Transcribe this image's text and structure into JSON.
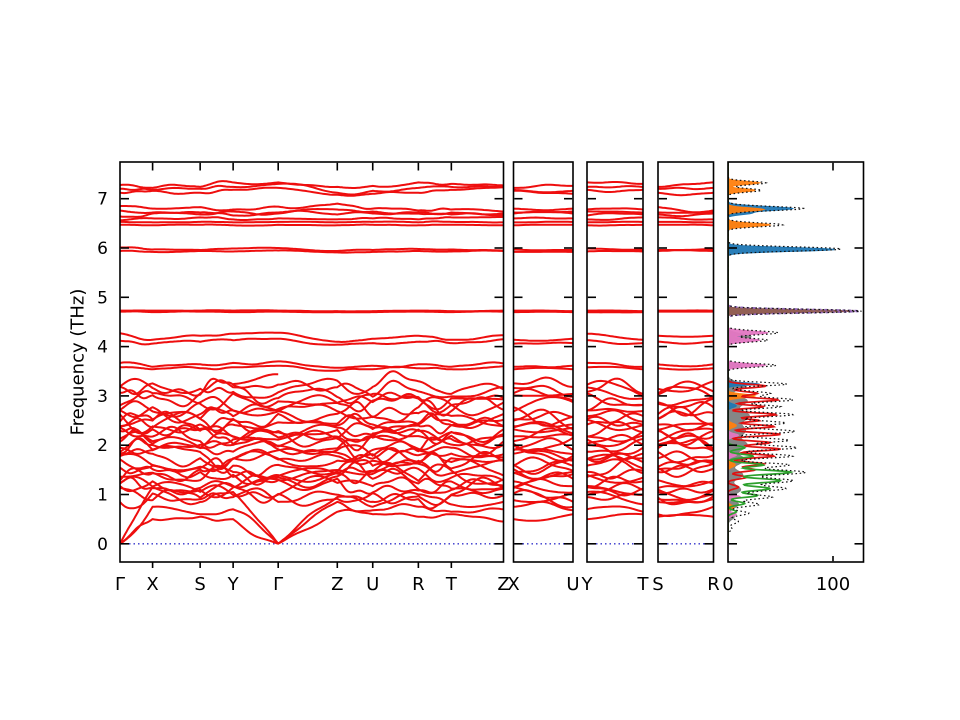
{
  "figure": {
    "background": "#ffffff"
  },
  "chart_data": {
    "type": "line",
    "title": "",
    "ylabel": "Frequency (THz)",
    "yticks": [
      0,
      1,
      2,
      3,
      4,
      5,
      6,
      7
    ],
    "ylim": [
      -0.37,
      7.75
    ],
    "band_color": "#ee0e0e",
    "zero_line_color": "#3434cc",
    "frame_color": "#000000",
    "panels": {
      "main": {
        "labels": [
          "Γ",
          "X",
          "S",
          "Y",
          "Γ",
          "Z",
          "U",
          "R",
          "T",
          "Z"
        ],
        "fractions": [
          0,
          0.085,
          0.209,
          0.295,
          0.4125,
          0.5666,
          0.659,
          0.778,
          0.864,
          1
        ]
      },
      "extra": [
        {
          "id": "XU",
          "labels": [
            "X",
            "U"
          ],
          "node_indices": [
            1,
            6
          ]
        },
        {
          "id": "YT",
          "labels": [
            "Y",
            "T"
          ],
          "node_indices": [
            3,
            8
          ]
        },
        {
          "id": "SR",
          "labels": [
            "S",
            "R"
          ],
          "node_indices": [
            2,
            7
          ]
        }
      ],
      "dos": {
        "xticks": [
          0,
          100
        ],
        "xlim": [
          0,
          129
        ],
        "legend": "none"
      }
    },
    "bands": {
      "explicit": [
        {
          "f": [
            7.28,
            7.22,
            7.24,
            7.33,
            7.33,
            7.24,
            7.26,
            7.33,
            7.3,
            7.27
          ],
          "bump": 0.05
        },
        {
          "f": [
            7.2,
            7.18,
            7.2,
            7.24,
            7.3,
            7.12,
            7.16,
            7.22,
            7.24,
            7.25
          ],
          "bump": 0.05
        },
        {
          "f": [
            7.12,
            7.16,
            7.12,
            7.18,
            7.22,
            7.08,
            7.1,
            7.12,
            7.18,
            7.23
          ],
          "bump": 0.04
        },
        {
          "f": [
            6.85,
            6.8,
            6.83,
            6.78,
            6.84,
            6.9,
            6.8,
            6.76,
            6.78,
            6.74
          ],
          "bump": 0.05
        },
        {
          "f": [
            6.76,
            6.72,
            6.68,
            6.74,
            6.7,
            6.78,
            6.74,
            6.7,
            6.72,
            6.7
          ],
          "bump": 0.04
        },
        {
          "f": [
            6.64,
            6.7,
            6.72,
            6.66,
            6.72,
            6.68,
            6.7,
            6.72,
            6.68,
            6.66
          ],
          "bump": 0.04
        },
        {
          "f": [
            6.56,
            6.6,
            6.62,
            6.58,
            6.6,
            6.58,
            6.6,
            6.58,
            6.62,
            6.63
          ],
          "bump": 0.03
        },
        {
          "f": [
            6.53,
            6.52,
            6.53,
            6.52,
            6.53,
            6.52,
            6.53,
            6.52,
            6.53,
            6.52
          ],
          "bump": 0.012
        },
        {
          "f": [
            6.47,
            6.46,
            6.47,
            6.46,
            6.47,
            6.46,
            6.47,
            6.46,
            6.47,
            6.46
          ],
          "bump": 0.012
        },
        {
          "f": [
            6.01,
            5.97,
            5.96,
            5.99,
            6.0,
            5.94,
            5.96,
            5.98,
            5.97,
            5.95
          ],
          "bump": 0.015
        },
        {
          "f": [
            5.94,
            5.92,
            5.94,
            5.93,
            5.95,
            5.91,
            5.92,
            5.94,
            5.93,
            5.94
          ],
          "bump": 0.012
        },
        {
          "f": [
            4.73,
            4.73,
            4.73,
            4.73,
            4.73,
            4.72,
            4.72,
            4.73,
            4.72,
            4.73
          ],
          "bump": 0.008
        },
        {
          "f": [
            4.71,
            4.7,
            4.71,
            4.7,
            4.71,
            4.7,
            4.7,
            4.71,
            4.7,
            4.71
          ],
          "bump": 0.008
        },
        {
          "f": [
            4.27,
            4.14,
            4.22,
            4.26,
            4.28,
            4.1,
            4.16,
            4.22,
            4.14,
            4.23
          ],
          "bump": 0.04
        },
        {
          "f": [
            4.12,
            4.06,
            4.1,
            4.13,
            4.16,
            4.04,
            4.07,
            4.1,
            4.07,
            4.15
          ],
          "bump": 0.035
        },
        {
          "f": [
            3.67,
            3.59,
            3.64,
            3.67,
            3.7,
            3.57,
            3.61,
            3.64,
            3.59,
            3.66
          ],
          "bump": 0.04
        },
        {
          "f": [
            3.58,
            3.54,
            3.56,
            3.58,
            3.61,
            3.51,
            3.54,
            3.56,
            3.54,
            3.6
          ],
          "bump": 0.03
        }
      ],
      "acoustic": [
        {
          "f": [
            0,
            1.15,
            0.85,
            1.05,
            0,
            0.95,
            0.75,
            1.0,
            0.8,
            0.85
          ],
          "bump": 0.1
        },
        {
          "f": [
            0,
            0.75,
            0.6,
            0.7,
            0,
            0.85,
            0.68,
            0.75,
            0.65,
            0.7
          ],
          "bump": 0.1
        },
        {
          "f": [
            0,
            0.5,
            0.55,
            0.5,
            0,
            0.65,
            0.6,
            0.55,
            0.6,
            0.45
          ],
          "bump": 0.08
        }
      ],
      "dense": {
        "base": [
          0.95,
          1.02,
          1.1,
          1.18,
          1.26,
          1.34,
          1.42,
          1.5,
          1.58,
          1.66,
          1.74,
          1.82,
          1.9,
          1.98,
          2.06,
          2.14,
          2.22,
          2.3,
          2.38,
          2.46,
          2.54,
          2.62,
          2.72,
          2.82,
          2.92,
          3.02,
          3.12,
          3.2
        ],
        "wobble": 0.16,
        "bump": 0.22,
        "seed": 7
      },
      "partial": [
        {
          "from": 3,
          "to": 4,
          "f": [
            3.24,
            3.44
          ]
        }
      ]
    },
    "dos_series": [
      {
        "name": "pdos-gray",
        "color": "#808080",
        "style": "fill",
        "peaks": [
          [
            6.8,
            18,
            0.05
          ],
          [
            6.47,
            14,
            0.05
          ],
          [
            4.2,
            22,
            0.08
          ],
          [
            3.62,
            12,
            0.05
          ],
          [
            3.2,
            16,
            0.1
          ],
          [
            2.9,
            18,
            0.12
          ],
          [
            2.6,
            20,
            0.15
          ],
          [
            2.3,
            16,
            0.15
          ],
          [
            2.0,
            18,
            0.15
          ],
          [
            1.7,
            16,
            0.12
          ],
          [
            1.4,
            14,
            0.12
          ],
          [
            1.1,
            12,
            0.12
          ],
          [
            0.8,
            10,
            0.1
          ],
          [
            0.55,
            6,
            0.08
          ]
        ]
      },
      {
        "name": "pdos-blue",
        "color": "#1f77b4",
        "style": "fill",
        "peaks": [
          [
            6.8,
            62,
            0.06
          ],
          [
            6.7,
            18,
            0.04
          ],
          [
            5.97,
            102,
            0.055
          ],
          [
            3.24,
            30,
            0.035
          ],
          [
            2.8,
            8,
            0.05
          ]
        ]
      },
      {
        "name": "pdos-orange",
        "color": "#ff7f0e",
        "style": "fill",
        "peaks": [
          [
            7.32,
            30,
            0.045
          ],
          [
            7.17,
            26,
            0.045
          ],
          [
            6.78,
            34,
            0.05
          ],
          [
            6.47,
            40,
            0.05
          ],
          [
            3.0,
            26,
            0.05
          ],
          [
            2.4,
            8,
            0.06
          ],
          [
            1.6,
            7,
            0.06
          ],
          [
            0.75,
            6,
            0.05
          ]
        ]
      },
      {
        "name": "pdos-brown",
        "color": "#8c564b",
        "style": "fill",
        "peaks": [
          [
            4.72,
            122,
            0.04
          ]
        ]
      },
      {
        "name": "pdos-purple",
        "color": "#9467bd",
        "style": "dashed",
        "peaks": [
          [
            4.72,
            126,
            0.05
          ],
          [
            4.2,
            12,
            0.05
          ]
        ]
      },
      {
        "name": "pdos-pink",
        "color": "#e377c2",
        "style": "fill",
        "peaks": [
          [
            4.28,
            38,
            0.05
          ],
          [
            4.13,
            30,
            0.05
          ],
          [
            3.62,
            36,
            0.045
          ],
          [
            2.2,
            10,
            0.05
          ],
          [
            1.8,
            8,
            0.05
          ],
          [
            0.95,
            12,
            0.05
          ],
          [
            0.6,
            8,
            0.05
          ]
        ]
      },
      {
        "name": "pdos-red",
        "color": "#e01010",
        "style": "line",
        "peaks": [
          [
            3.2,
            36,
            0.05
          ],
          [
            3.05,
            28,
            0.05
          ],
          [
            2.92,
            48,
            0.05
          ],
          [
            2.78,
            34,
            0.045
          ],
          [
            2.62,
            46,
            0.05
          ],
          [
            2.5,
            30,
            0.04
          ],
          [
            2.38,
            44,
            0.05
          ],
          [
            2.22,
            50,
            0.05
          ],
          [
            2.05,
            40,
            0.05
          ],
          [
            1.92,
            50,
            0.05
          ],
          [
            1.78,
            44,
            0.05
          ],
          [
            1.62,
            34,
            0.05
          ],
          [
            1.5,
            26,
            0.05
          ],
          [
            1.35,
            18,
            0.05
          ],
          [
            1.15,
            10,
            0.05
          ]
        ]
      },
      {
        "name": "pdos-green",
        "color": "#2ca02c",
        "style": "line",
        "peaks": [
          [
            1.95,
            16,
            0.05
          ],
          [
            1.78,
            24,
            0.05
          ],
          [
            1.6,
            34,
            0.05
          ],
          [
            1.45,
            60,
            0.06
          ],
          [
            1.28,
            50,
            0.06
          ],
          [
            1.12,
            40,
            0.06
          ],
          [
            0.98,
            28,
            0.05
          ],
          [
            0.82,
            16,
            0.05
          ],
          [
            0.65,
            8,
            0.05
          ]
        ]
      },
      {
        "name": "total-dos",
        "color": "#111111",
        "style": "dotted",
        "peaks": [
          [
            7.32,
            36,
            0.05
          ],
          [
            7.17,
            32,
            0.05
          ],
          [
            6.8,
            72,
            0.06
          ],
          [
            6.47,
            52,
            0.055
          ],
          [
            5.98,
            108,
            0.06
          ],
          [
            4.72,
            128,
            0.05
          ],
          [
            4.28,
            48,
            0.055
          ],
          [
            4.13,
            38,
            0.05
          ],
          [
            3.62,
            46,
            0.05
          ],
          [
            3.24,
            56,
            0.05
          ],
          [
            3.05,
            40,
            0.06
          ],
          [
            2.92,
            62,
            0.06
          ],
          [
            2.78,
            50,
            0.05
          ],
          [
            2.62,
            62,
            0.06
          ],
          [
            2.45,
            55,
            0.06
          ],
          [
            2.28,
            64,
            0.06
          ],
          [
            2.1,
            58,
            0.06
          ],
          [
            1.95,
            66,
            0.06
          ],
          [
            1.78,
            62,
            0.06
          ],
          [
            1.6,
            58,
            0.06
          ],
          [
            1.45,
            74,
            0.07
          ],
          [
            1.28,
            62,
            0.07
          ],
          [
            1.12,
            55,
            0.07
          ],
          [
            0.95,
            42,
            0.06
          ],
          [
            0.8,
            30,
            0.06
          ],
          [
            0.62,
            20,
            0.06
          ],
          [
            0.45,
            10,
            0.06
          ],
          [
            0.3,
            4,
            0.05
          ]
        ]
      }
    ]
  }
}
